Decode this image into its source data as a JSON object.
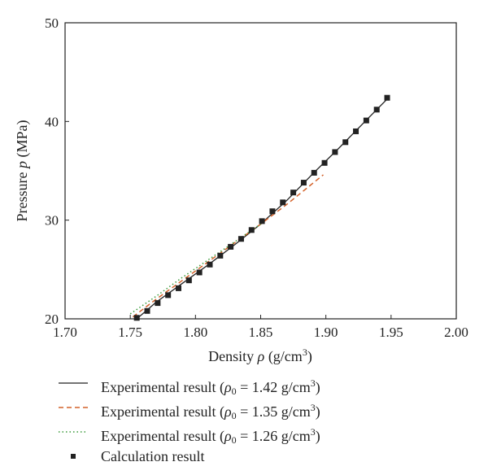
{
  "chart_data": {
    "type": "line",
    "xlabel": "Density ρ (g/cm³)",
    "ylabel": "Pressure p (MPa)",
    "xlim": [
      1.7,
      2.0
    ],
    "ylim": [
      20,
      50
    ],
    "x_ticks": [
      "1.70",
      "1.75",
      "1.80",
      "1.85",
      "1.90",
      "1.95",
      "2.00"
    ],
    "y_ticks": [
      "20",
      "30",
      "40",
      "50"
    ],
    "grid": false,
    "legend_position": "below",
    "series": [
      {
        "name": "Experimental result (ρ0 = 1.42 g/cm³)",
        "style": "solid",
        "color": "#222222",
        "x": [
          1.755,
          1.77,
          1.79,
          1.81,
          1.83,
          1.85,
          1.87,
          1.89,
          1.91,
          1.93,
          1.948
        ],
        "y": [
          20.0,
          21.7,
          23.6,
          25.5,
          27.5,
          29.6,
          32.0,
          34.7,
          37.3,
          40.0,
          42.4
        ]
      },
      {
        "name": "Experimental result (ρ0 = 1.35 g/cm³)",
        "style": "dashed",
        "color": "#d4622a",
        "x": [
          1.752,
          1.77,
          1.79,
          1.81,
          1.83,
          1.85,
          1.87,
          1.898
        ],
        "y": [
          20.2,
          22.0,
          23.9,
          25.8,
          27.7,
          29.6,
          31.6,
          34.6
        ]
      },
      {
        "name": "Experimental result (ρ0 = 1.26 g/cm³)",
        "style": "dotted",
        "color": "#3a9a3a",
        "x": [
          1.75,
          1.77,
          1.79,
          1.81,
          1.83,
          1.85
        ],
        "y": [
          20.5,
          22.3,
          24.2,
          26.0,
          27.8,
          29.6
        ]
      },
      {
        "name": "Calculation result",
        "style": "markers",
        "color": "#222222",
        "x": [
          1.755,
          1.763,
          1.771,
          1.779,
          1.787,
          1.795,
          1.803,
          1.811,
          1.819,
          1.827,
          1.835,
          1.843,
          1.851,
          1.859,
          1.867,
          1.875,
          1.883,
          1.891,
          1.899,
          1.907,
          1.915,
          1.923,
          1.931,
          1.939,
          1.947
        ],
        "y": [
          20.1,
          20.8,
          21.6,
          22.4,
          23.1,
          23.9,
          24.7,
          25.5,
          26.4,
          27.3,
          28.1,
          29.0,
          29.9,
          30.9,
          31.8,
          32.8,
          33.8,
          34.8,
          35.8,
          36.9,
          37.9,
          39.0,
          40.1,
          41.2,
          42.4
        ]
      }
    ],
    "legend": [
      {
        "pre": "Experimental result (",
        "rho": "ρ",
        "sub": "0",
        "mid": " = 1.42 g/cm",
        "sup": "3",
        "post": ")"
      },
      {
        "pre": "Experimental result (",
        "rho": "ρ",
        "sub": "0",
        "mid": " = 1.35 g/cm",
        "sup": "3",
        "post": ")"
      },
      {
        "pre": "Experimental result (",
        "rho": "ρ",
        "sub": "0",
        "mid": " = 1.26 g/cm",
        "sup": "3",
        "post": ")"
      },
      {
        "pre": "Calculation result",
        "rho": "",
        "sub": "",
        "mid": "",
        "sup": "",
        "post": ""
      }
    ]
  }
}
